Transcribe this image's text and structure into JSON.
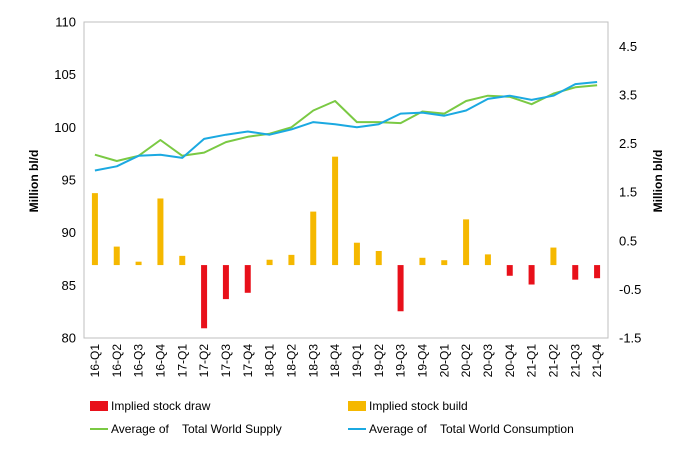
{
  "chart_data": {
    "type": "bar",
    "ylabel_left": "Million bl/d",
    "ylabel_right": "Million bl/d",
    "ylim_left": [
      80,
      110
    ],
    "ylim_right": [
      -1.5,
      5.0
    ],
    "yticks_left": [
      "80",
      "85",
      "90",
      "95",
      "100",
      "105",
      "110"
    ],
    "yticks_right": [
      "-1.5",
      "-0.5",
      "0.5",
      "1.5",
      "2.5",
      "3.5",
      "4.5"
    ],
    "categories": [
      "16-Q1",
      "16-Q2",
      "16-Q3",
      "16-Q4",
      "17-Q1",
      "17-Q2",
      "17-Q3",
      "17-Q4",
      "18-Q1",
      "18-Q2",
      "18-Q3",
      "18-Q4",
      "19-Q1",
      "19-Q2",
      "19-Q3",
      "19-Q4",
      "20-Q1",
      "20-Q2",
      "20-Q3",
      "20-Q4",
      "21-Q1",
      "21-Q2",
      "21-Q3",
      "21-Q4"
    ],
    "bar_series": [
      {
        "name": "Implied stock draw",
        "color": "#e8101a",
        "values": [
          null,
          null,
          null,
          null,
          null,
          -1.3,
          -0.7,
          -0.57,
          null,
          null,
          null,
          null,
          null,
          null,
          -0.95,
          null,
          null,
          null,
          null,
          -0.22,
          -0.4,
          null,
          -0.3,
          -0.27
        ]
      },
      {
        "name": "Implied stock build",
        "color": "#f5b800",
        "values": [
          1.48,
          0.38,
          0.07,
          1.37,
          0.19,
          null,
          null,
          null,
          0.11,
          0.21,
          1.1,
          2.23,
          0.46,
          0.29,
          null,
          0.15,
          0.1,
          0.94,
          0.22,
          null,
          null,
          0.36,
          null,
          null
        ]
      }
    ],
    "line_series": [
      {
        "name": "Average of    Total World Supply",
        "color": "#7ac943",
        "values": [
          97.4,
          96.8,
          97.3,
          98.8,
          97.3,
          97.6,
          98.6,
          99.1,
          99.4,
          100.0,
          101.6,
          102.5,
          100.5,
          100.5,
          100.4,
          101.5,
          101.3,
          102.5,
          103.0,
          102.9,
          102.2,
          103.2,
          103.8,
          104.0
        ]
      },
      {
        "name": "Average of    Total World Consumption",
        "color": "#1ba9e1",
        "values": [
          95.9,
          96.3,
          97.3,
          97.4,
          97.1,
          98.9,
          99.3,
          99.6,
          99.3,
          99.8,
          100.5,
          100.3,
          100.0,
          100.3,
          101.3,
          101.4,
          101.1,
          101.6,
          102.7,
          103.0,
          102.6,
          103.0,
          104.1,
          104.3
        ]
      }
    ],
    "legend_position": "bottom",
    "grid": false
  }
}
